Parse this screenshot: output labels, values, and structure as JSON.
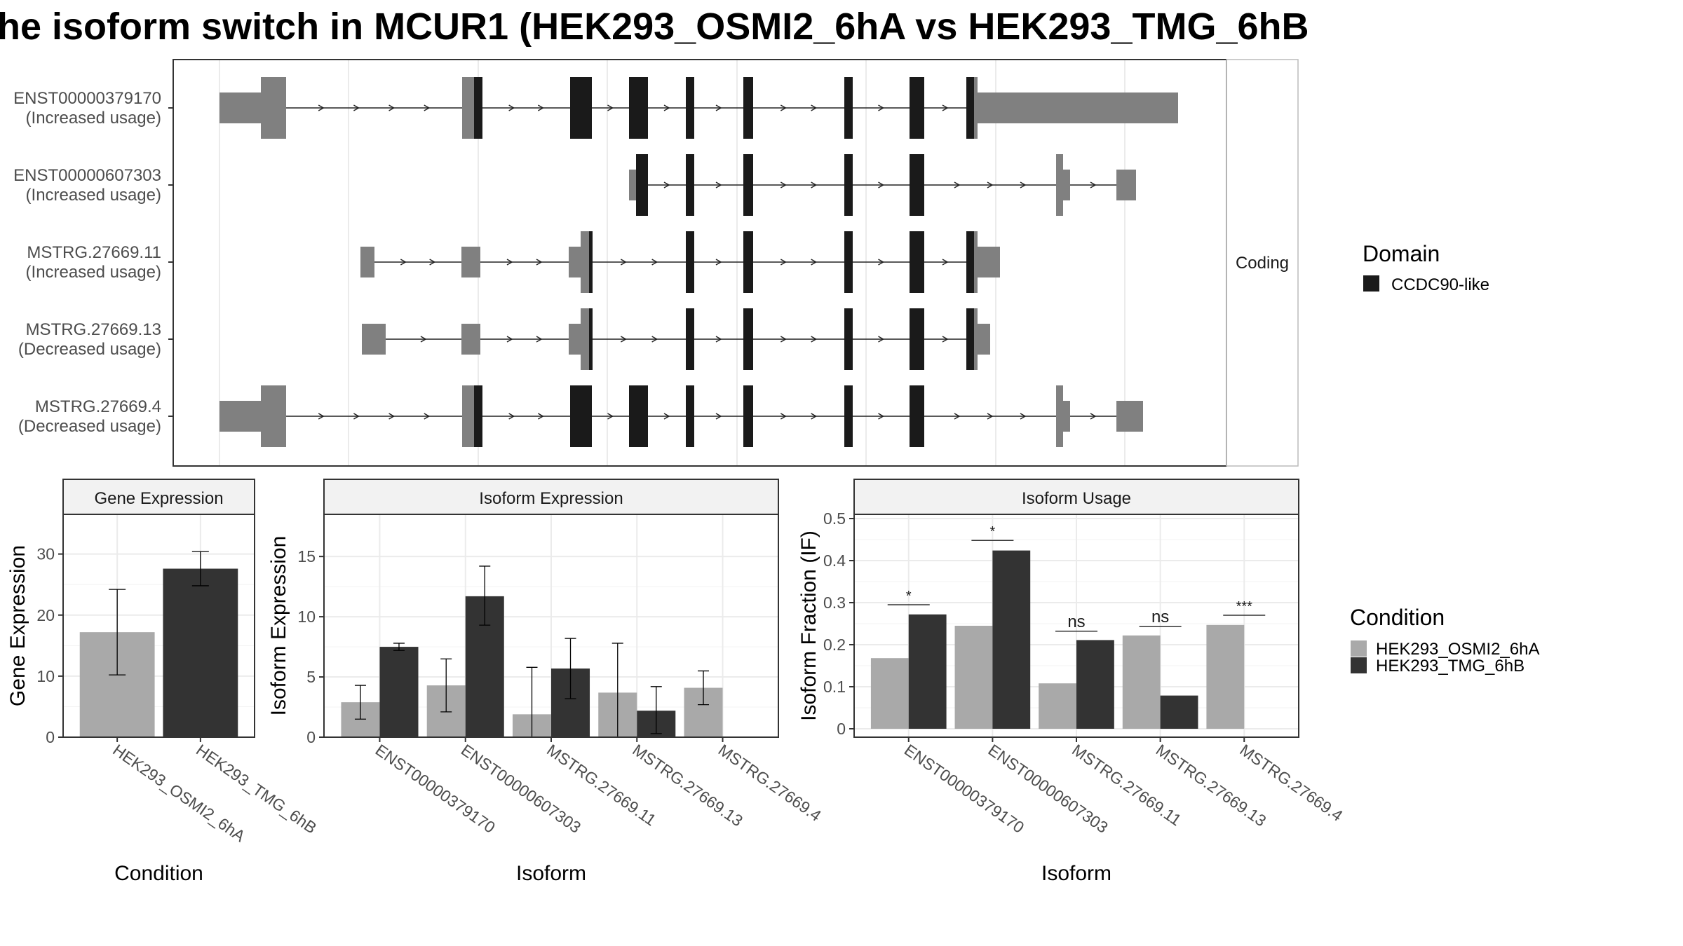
{
  "title": "he isoform switch in MCUR1 (HEK293_OSMI2_6hA vs HEK293_TMG_6hB",
  "colors": {
    "cond1": "#a9a9a9",
    "cond2": "#333333",
    "utr": "#808080",
    "cds": "#1a1a1a",
    "grid": "#ebebeb",
    "border": "#333333",
    "strip": "#f2f2f2"
  },
  "structure": {
    "strip_label": "Coding",
    "legend_title": "Domain",
    "legend_items": [
      "CCDC90-like"
    ],
    "transcripts": [
      {
        "name": "ENST00000379170",
        "usage": "(Increased usage)"
      },
      {
        "name": "ENST00000607303",
        "usage": "(Increased usage)"
      },
      {
        "name": "MSTRG.27669.11",
        "usage": "(Increased usage)"
      },
      {
        "name": "MSTRG.27669.13",
        "usage": "(Decreased usage)"
      },
      {
        "name": "MSTRG.27669.4",
        "usage": "(Decreased usage)"
      }
    ]
  },
  "condition_legend": {
    "title": "Condition",
    "items": [
      "HEK293_OSMI2_6hA",
      "HEK293_TMG_6hB"
    ]
  },
  "chart_data": [
    {
      "type": "bar",
      "title": "Gene Expression",
      "xlabel": "Condition",
      "ylabel": "Gene Expression",
      "categories": [
        "HEK293_OSMI2_6hA",
        "HEK293_TMG_6hB"
      ],
      "values": [
        17.2,
        27.6
      ],
      "error_low": [
        10.2,
        24.8
      ],
      "error_high": [
        24.2,
        30.4
      ],
      "ylim": [
        0,
        36.5
      ],
      "yticks": [
        0,
        10,
        20,
        30
      ]
    },
    {
      "type": "bar",
      "title": "Isoform Expression",
      "xlabel": "Isoform",
      "ylabel": "Isoform Expression",
      "categories": [
        "ENST00000379170",
        "ENST00000607303",
        "MSTRG.27669.11",
        "MSTRG.27669.13",
        "MSTRG.27669.4"
      ],
      "series": [
        {
          "name": "HEK293_OSMI2_6hA",
          "values": [
            2.9,
            4.3,
            1.9,
            3.7,
            4.1
          ],
          "error_low": [
            1.5,
            2.1,
            0.0,
            0.0,
            2.7
          ],
          "error_high": [
            4.3,
            6.5,
            5.8,
            7.8,
            5.5
          ]
        },
        {
          "name": "HEK293_TMG_6hB",
          "values": [
            7.5,
            11.7,
            5.7,
            2.2,
            0.0
          ],
          "error_low": [
            7.2,
            9.3,
            3.2,
            0.3,
            0.0
          ],
          "error_high": [
            7.8,
            14.2,
            8.2,
            4.2,
            0.0
          ]
        }
      ],
      "ylim": [
        0,
        18.5
      ],
      "yticks": [
        0,
        5,
        10,
        15
      ]
    },
    {
      "type": "bar",
      "title": "Isoform Usage",
      "xlabel": "Isoform",
      "ylabel": "Isoform Fraction (IF)",
      "categories": [
        "ENST00000379170",
        "ENST00000607303",
        "MSTRG.27669.11",
        "MSTRG.27669.13",
        "MSTRG.27669.4"
      ],
      "series": [
        {
          "name": "HEK293_OSMI2_6hA",
          "values": [
            0.168,
            0.245,
            0.108,
            0.222,
            0.247
          ]
        },
        {
          "name": "HEK293_TMG_6hB",
          "values": [
            0.272,
            0.424,
            0.211,
            0.079,
            0.0
          ]
        }
      ],
      "significance": [
        "*",
        "*",
        "ns",
        "ns",
        "***"
      ],
      "sig_level": [
        0.295,
        0.448,
        0.232,
        0.243,
        0.27
      ],
      "ylim": [
        -0.02,
        0.51
      ],
      "yticks": [
        0.0,
        0.1,
        0.2,
        0.3,
        0.4,
        0.5
      ]
    }
  ]
}
